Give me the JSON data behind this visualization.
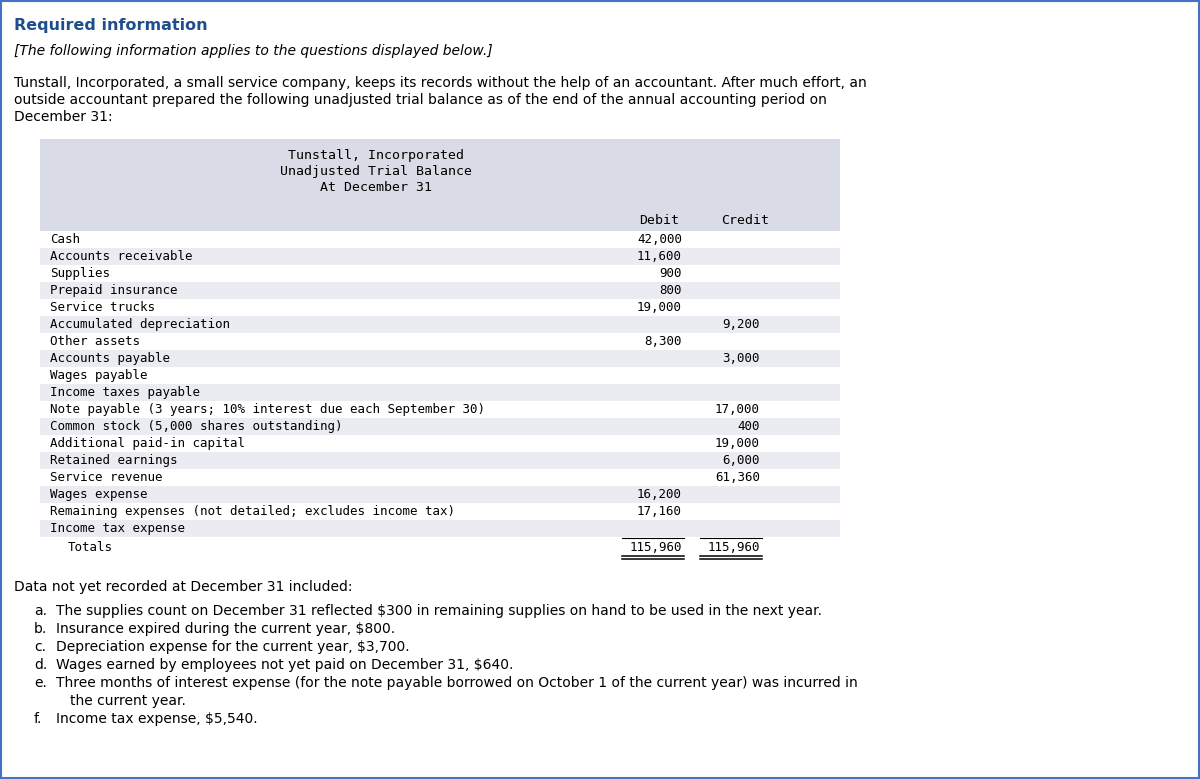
{
  "title_heading": "Required information",
  "subtitle_italic": "[The following information applies to the questions displayed below.]",
  "intro_lines": [
    "Tunstall, Incorporated, a small service company, keeps its records without the help of an accountant. After much effort, an",
    "outside accountant prepared the following unadjusted trial balance as of the end of the annual accounting period on",
    "December 31:"
  ],
  "table_title_line1": "Tunstall, Incorporated",
  "table_title_line2": "Unadjusted Trial Balance",
  "table_title_line3": "At December 31",
  "col_debit": "Debit",
  "col_credit": "Credit",
  "table_rows": [
    {
      "label": "Cash",
      "debit": "42,000",
      "credit": ""
    },
    {
      "label": "Accounts receivable",
      "debit": "11,600",
      "credit": ""
    },
    {
      "label": "Supplies",
      "debit": "900",
      "credit": ""
    },
    {
      "label": "Prepaid insurance",
      "debit": "800",
      "credit": ""
    },
    {
      "label": "Service trucks",
      "debit": "19,000",
      "credit": ""
    },
    {
      "label": "Accumulated depreciation",
      "debit": "",
      "credit": "9,200"
    },
    {
      "label": "Other assets",
      "debit": "8,300",
      "credit": ""
    },
    {
      "label": "Accounts payable",
      "debit": "",
      "credit": "3,000"
    },
    {
      "label": "Wages payable",
      "debit": "",
      "credit": ""
    },
    {
      "label": "Income taxes payable",
      "debit": "",
      "credit": ""
    },
    {
      "label": "Note payable (3 years; 10% interest due each September 30)",
      "debit": "",
      "credit": "17,000"
    },
    {
      "label": "Common stock (5,000 shares outstanding)",
      "debit": "",
      "credit": "400"
    },
    {
      "label": "Additional paid-in capital",
      "debit": "",
      "credit": "19,000"
    },
    {
      "label": "Retained earnings",
      "debit": "",
      "credit": "6,000"
    },
    {
      "label": "Service revenue",
      "debit": "",
      "credit": "61,360"
    },
    {
      "label": "Wages expense",
      "debit": "16,200",
      "credit": ""
    },
    {
      "label": "Remaining expenses (not detailed; excludes income tax)",
      "debit": "17,160",
      "credit": ""
    },
    {
      "label": "Income tax expense",
      "debit": "",
      "credit": ""
    }
  ],
  "totals_label": "Totals",
  "totals_debit": "115,960",
  "totals_credit": "115,960",
  "data_label": "Data not yet recorded at December 31 included:",
  "bullet_items": [
    {
      "letter": "a.",
      "text": "The supplies count on December 31 reflected $300 in remaining supplies on hand to be used in the next year."
    },
    {
      "letter": "b.",
      "text": "Insurance expired during the current year, $800."
    },
    {
      "letter": "c.",
      "text": "Depreciation expense for the current year, $3,700."
    },
    {
      "letter": "d.",
      "text": "Wages earned by employees not yet paid on December 31, $640."
    },
    {
      "letter": "e.",
      "text": "Three months of interest expense (for the note payable borrowed on October 1 of the current year) was incurred in",
      "continuation": "the current year."
    },
    {
      "letter": "f.",
      "text": "Income tax expense, $5,540."
    }
  ],
  "heading_color": "#1F4E8C",
  "border_color": "#4472C4",
  "table_bg_color": "#D9DCE6",
  "row_alt_color": "#EAECF2",
  "row_white": "#FFFFFF",
  "text_color": "#000000",
  "bg_color": "#FFFFFF"
}
